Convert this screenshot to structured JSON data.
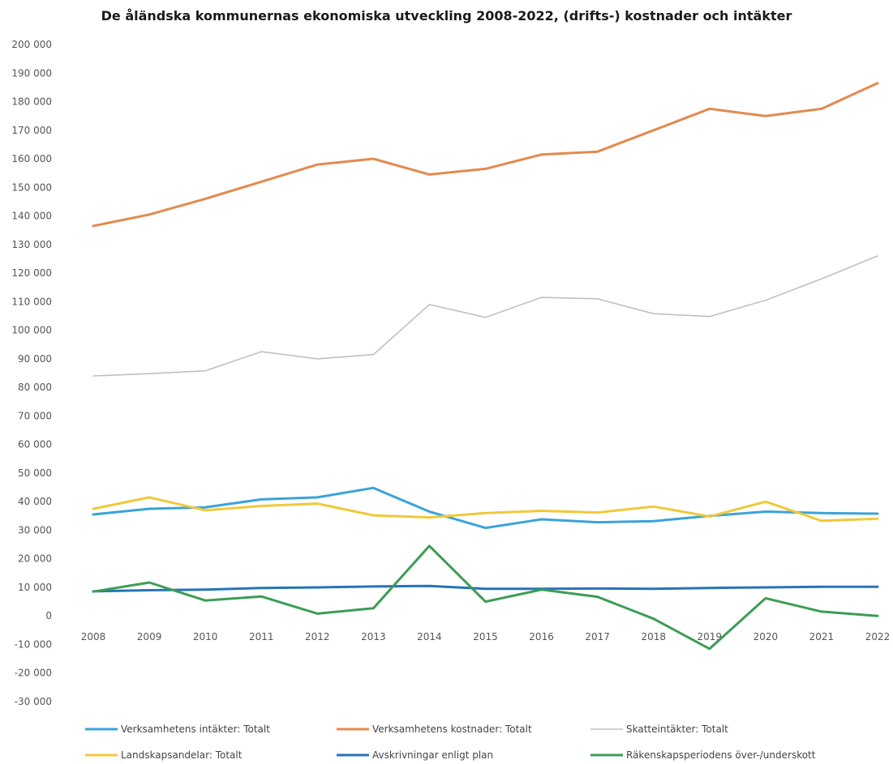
{
  "chart_data": {
    "type": "line",
    "title": "De åländska kommunernas ekonomiska utveckling 2008-2022, (drifts-) kostnader och intäkter",
    "xlabel": "",
    "ylabel": "",
    "categories": [
      "2008",
      "2009",
      "2010",
      "2011",
      "2012",
      "2013",
      "2014",
      "2015",
      "2016",
      "2017",
      "2018",
      "2019",
      "2020",
      "2021",
      "2022"
    ],
    "ylim": [
      -30000,
      200000
    ],
    "yticks": [
      {
        "value": 200000,
        "label": "200 000"
      },
      {
        "value": 190000,
        "label": "190 000"
      },
      {
        "value": 180000,
        "label": "180 000"
      },
      {
        "value": 170000,
        "label": "170 000"
      },
      {
        "value": 160000,
        "label": "160 000"
      },
      {
        "value": 150000,
        "label": "150 000"
      },
      {
        "value": 140000,
        "label": "140 000"
      },
      {
        "value": 130000,
        "label": "130 000"
      },
      {
        "value": 120000,
        "label": "120 000"
      },
      {
        "value": 110000,
        "label": "110 000"
      },
      {
        "value": 100000,
        "label": "100 000"
      },
      {
        "value": 90000,
        "label": "90 000"
      },
      {
        "value": 80000,
        "label": "80 000"
      },
      {
        "value": 70000,
        "label": "70 000"
      },
      {
        "value": 60000,
        "label": "60 000"
      },
      {
        "value": 50000,
        "label": "50 000"
      },
      {
        "value": 40000,
        "label": "40 000"
      },
      {
        "value": 30000,
        "label": "30 000"
      },
      {
        "value": 20000,
        "label": "20 000"
      },
      {
        "value": 10000,
        "label": "10 000"
      },
      {
        "value": 0,
        "label": "0"
      },
      {
        "value": -10000,
        "label": "-10 000"
      },
      {
        "value": -20000,
        "label": "-20 000"
      },
      {
        "value": -30000,
        "label": "-30 000"
      }
    ],
    "grid": false,
    "legend_position": "bottom",
    "series": [
      {
        "name": "Verksamhetens intäkter: Totalt",
        "color": "#3ba3d9",
        "values": [
          35500,
          37500,
          38000,
          40800,
          41500,
          44800,
          36500,
          30800,
          33800,
          32800,
          33200,
          35000,
          36500,
          36000,
          35800
        ]
      },
      {
        "name": "Verksamhetens kostnader: Totalt",
        "color": "#e38a4e",
        "values": [
          136500,
          140500,
          146000,
          152000,
          158000,
          160000,
          154500,
          156500,
          161500,
          162500,
          170000,
          177500,
          175000,
          177500,
          186500
        ]
      },
      {
        "name": "Skatteintäkter: Totalt",
        "color": "#c0c0c0",
        "values": [
          84000,
          84800,
          85800,
          92500,
          90000,
          91500,
          109000,
          104500,
          111500,
          111000,
          105800,
          104800,
          110500,
          118000,
          126000
        ]
      },
      {
        "name": "Landskapsandelar: Totalt",
        "color": "#efc93a",
        "values": [
          37500,
          41500,
          37000,
          38500,
          39300,
          35200,
          34500,
          36000,
          36800,
          36200,
          38300,
          34800,
          40000,
          33300,
          34000
        ]
      },
      {
        "name": "Avskrivningar enligt plan",
        "color": "#2574b8",
        "values": [
          8600,
          9000,
          9200,
          9800,
          10000,
          10300,
          10500,
          9500,
          9500,
          9600,
          9500,
          9800,
          10000,
          10200,
          10200
        ]
      },
      {
        "name": "Räkenskapsperiodens över-/underskott",
        "color": "#3c9d55",
        "values": [
          8500,
          11700,
          5400,
          6800,
          800,
          2700,
          24500,
          5000,
          9200,
          6700,
          -1000,
          -11500,
          6200,
          1500,
          0
        ]
      }
    ]
  }
}
